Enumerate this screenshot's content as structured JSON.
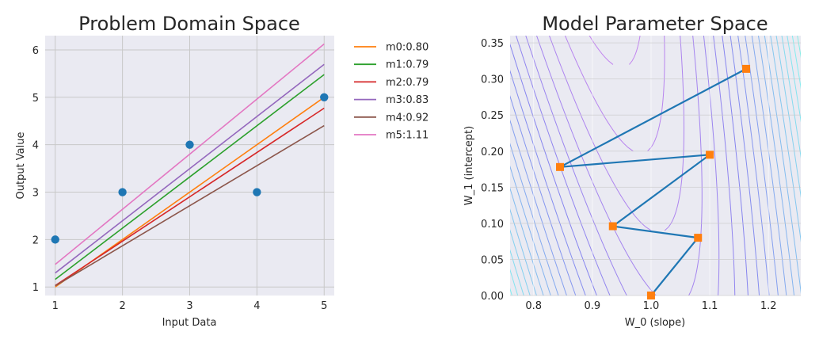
{
  "chart_data": [
    {
      "type": "scatter+line",
      "title": "Problem Domain Space",
      "xlabel": "Input Data",
      "ylabel": "Output Value",
      "xlim": [
        0.85,
        5.15
      ],
      "ylim": [
        0.82,
        6.3
      ],
      "xticks": [
        1,
        2,
        3,
        4,
        5
      ],
      "yticks": [
        1,
        2,
        3,
        4,
        5,
        6
      ],
      "grid": true,
      "legend_position": "outside-right",
      "points": {
        "x": [
          1,
          2,
          3,
          4,
          5
        ],
        "y": [
          2,
          3,
          4,
          3,
          5
        ],
        "color": "#1f77b4"
      },
      "series": [
        {
          "name": "m0:0.80",
          "color": "#ff7f0e",
          "slope": 1.0,
          "intercept": 0.0
        },
        {
          "name": "m1:0.79",
          "color": "#2ca02c",
          "slope": 1.08,
          "intercept": 0.08
        },
        {
          "name": "m2:0.79",
          "color": "#d62728",
          "slope": 0.935,
          "intercept": 0.096
        },
        {
          "name": "m3:0.83",
          "color": "#9467bd",
          "slope": 1.1,
          "intercept": 0.195
        },
        {
          "name": "m4:0.92",
          "color": "#8c564b",
          "slope": 0.845,
          "intercept": 0.178
        },
        {
          "name": "m5:1.11",
          "color": "#e377c2",
          "slope": 1.162,
          "intercept": 0.314
        }
      ]
    },
    {
      "type": "contour+path",
      "title": "Model Parameter Space",
      "xlabel": "W_0 (slope)",
      "ylabel": "W_1 (intercept)",
      "xlim": [
        0.76,
        1.255
      ],
      "ylim": [
        0.0,
        0.36
      ],
      "xticks": [
        "0.8",
        "0.9",
        "1.0",
        "1.1",
        "1.2"
      ],
      "yticks": [
        "0.00",
        "0.05",
        "0.10",
        "0.15",
        "0.20",
        "0.25",
        "0.30",
        "0.35"
      ],
      "grid": true,
      "path": {
        "color": "#1f77b4",
        "marker_color": "#ff7f0e",
        "w0": [
          1.0,
          1.08,
          0.935,
          1.1,
          0.845,
          1.162
        ],
        "w1": [
          0.0,
          0.08,
          0.096,
          0.195,
          0.178,
          0.314
        ]
      },
      "contour": {
        "levels": 50,
        "colormap": "rainbow"
      }
    }
  ]
}
